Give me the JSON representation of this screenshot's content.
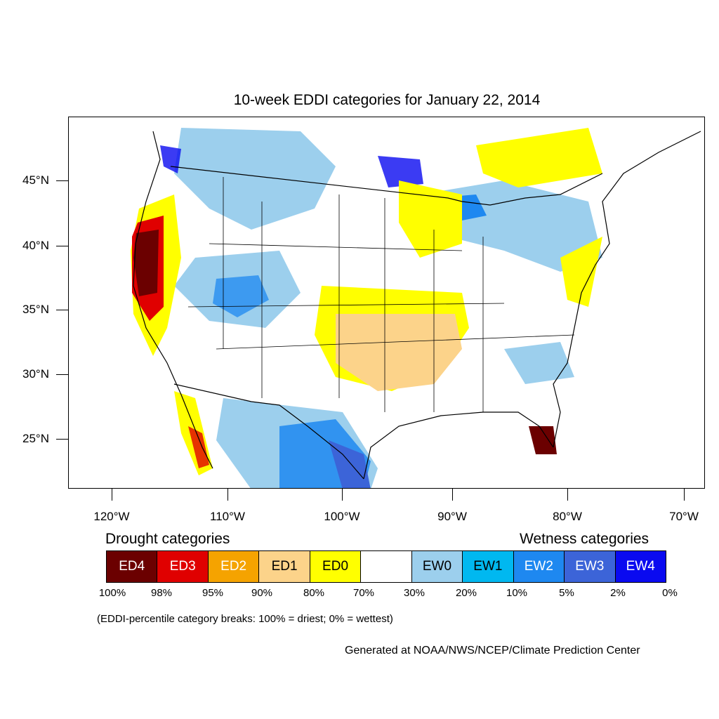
{
  "title": "10-week EDDI categories for January 22, 2014",
  "axes": {
    "y_ticks": [
      "45°N",
      "40°N",
      "35°N",
      "30°N",
      "25°N"
    ],
    "x_ticks": [
      "120°W",
      "110°W",
      "100°W",
      "90°W",
      "80°W",
      "70°W"
    ]
  },
  "legend": {
    "drought_heading": "Drought categories",
    "wetness_heading": "Wetness categories",
    "categories": [
      {
        "label": "ED4",
        "color": "#6b0000",
        "text_color": "#ffffff"
      },
      {
        "label": "ED3",
        "color": "#e00000",
        "text_color": "#ffffff"
      },
      {
        "label": "ED2",
        "color": "#f5a300",
        "text_color": "#ffffff"
      },
      {
        "label": "ED1",
        "color": "#fcd38a",
        "text_color": "#000000"
      },
      {
        "label": "ED0",
        "color": "#ffff00",
        "text_color": "#000000"
      },
      {
        "label": "",
        "color": "#ffffff",
        "text_color": "#000000"
      },
      {
        "label": "EW0",
        "color": "#9ccfed",
        "text_color": "#000000"
      },
      {
        "label": "EW1",
        "color": "#00b8f0",
        "text_color": "#000000"
      },
      {
        "label": "EW2",
        "color": "#1e88f0",
        "text_color": "#ffffff"
      },
      {
        "label": "EW3",
        "color": "#3c64d8",
        "text_color": "#ffffff"
      },
      {
        "label": "EW4",
        "color": "#0a0af0",
        "text_color": "#ffffff"
      }
    ],
    "percentiles": [
      "100%",
      "98%",
      "95%",
      "90%",
      "80%",
      "70%",
      "30%",
      "20%",
      "10%",
      "5%",
      "2%",
      "0%"
    ]
  },
  "note": "(EDDI-percentile category breaks: 100% = driest; 0% = wettest)",
  "credit": "Generated at NOAA/NWS/NCEP/Climate Prediction Center"
}
